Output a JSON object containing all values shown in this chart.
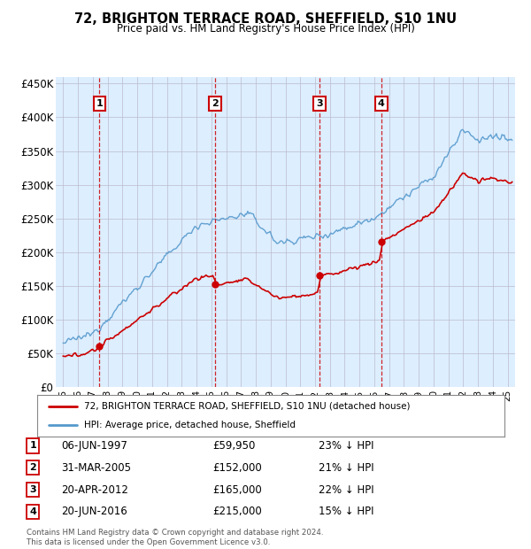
{
  "title1": "72, BRIGHTON TERRACE ROAD, SHEFFIELD, S10 1NU",
  "title2": "Price paid vs. HM Land Registry's House Price Index (HPI)",
  "ylabel_ticks": [
    "£0",
    "£50K",
    "£100K",
    "£150K",
    "£200K",
    "£250K",
    "£300K",
    "£350K",
    "£400K",
    "£450K"
  ],
  "ytick_values": [
    0,
    50000,
    100000,
    150000,
    200000,
    250000,
    300000,
    350000,
    400000,
    450000
  ],
  "xlim": [
    1994.5,
    2025.5
  ],
  "ylim": [
    0,
    460000
  ],
  "plot_bg_color": "#ddeeff",
  "hpi_color": "#5599cc",
  "price_color": "#cc0000",
  "sale_points": [
    {
      "year": 1997.44,
      "price": 59950,
      "label": "1"
    },
    {
      "year": 2005.25,
      "price": 152000,
      "label": "2"
    },
    {
      "year": 2012.3,
      "price": 165000,
      "label": "3"
    },
    {
      "year": 2016.47,
      "price": 215000,
      "label": "4"
    }
  ],
  "vline_color": "#cc0000",
  "legend_label_price": "72, BRIGHTON TERRACE ROAD, SHEFFIELD, S10 1NU (detached house)",
  "legend_label_hpi": "HPI: Average price, detached house, Sheffield",
  "table_rows": [
    {
      "num": "1",
      "date": "06-JUN-1997",
      "price": "£59,950",
      "hpi": "23% ↓ HPI"
    },
    {
      "num": "2",
      "date": "31-MAR-2005",
      "price": "£152,000",
      "hpi": "21% ↓ HPI"
    },
    {
      "num": "3",
      "date": "20-APR-2012",
      "price": "£165,000",
      "hpi": "22% ↓ HPI"
    },
    {
      "num": "4",
      "date": "20-JUN-2016",
      "price": "£215,000",
      "hpi": "15% ↓ HPI"
    }
  ],
  "footnote": "Contains HM Land Registry data © Crown copyright and database right 2024.\nThis data is licensed under the Open Government Licence v3.0.",
  "xtick_years": [
    1995,
    1996,
    1997,
    1998,
    1999,
    2000,
    2001,
    2002,
    2003,
    2004,
    2005,
    2006,
    2007,
    2008,
    2009,
    2010,
    2011,
    2012,
    2013,
    2014,
    2015,
    2016,
    2017,
    2018,
    2019,
    2020,
    2021,
    2022,
    2023,
    2024,
    2025
  ]
}
